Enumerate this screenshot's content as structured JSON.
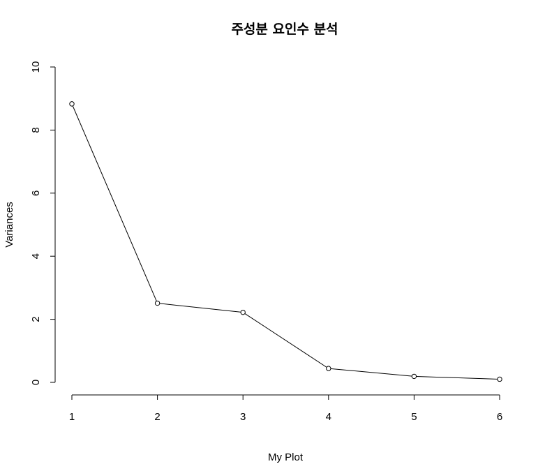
{
  "chart_data": {
    "type": "line",
    "title": "주성분 요인수 분석",
    "xlabel": "My Plot",
    "ylabel": "Variances",
    "x": [
      1,
      2,
      3,
      4,
      5,
      6
    ],
    "y": [
      8.83,
      2.51,
      2.22,
      0.44,
      0.19,
      0.1
    ],
    "xlim": [
      1,
      6
    ],
    "ylim": [
      0,
      10
    ],
    "xticks": [
      "1",
      "2",
      "3",
      "4",
      "5",
      "6"
    ],
    "yticks": [
      "0",
      "2",
      "4",
      "6",
      "8",
      "10"
    ],
    "grid": false,
    "markers": "open-circle",
    "line_color": "#000000"
  }
}
